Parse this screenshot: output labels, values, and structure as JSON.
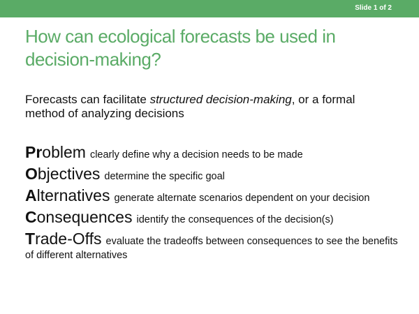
{
  "header": {
    "slide_counter": "Slide 1 of 2"
  },
  "title": "How can ecological forecasts be used in decision-making?",
  "intro": {
    "before": "Forecasts can facilitate ",
    "emphasis": "structured decision-making",
    "after": ", or a formal method of analyzing decisions"
  },
  "steps": [
    {
      "initial": "Pr",
      "rest": "oblem",
      "desc": "clearly define why a decision needs to be made"
    },
    {
      "initial": "O",
      "rest": "bjectives",
      "desc": "determine the specific goal"
    },
    {
      "initial": "A",
      "rest": "lternatives",
      "desc": "generate alternate scenarios dependent on your decision"
    },
    {
      "initial": "C",
      "rest": "onsequences",
      "desc": "identify the consequences of the decision(s)"
    },
    {
      "initial": "T",
      "rest": "rade-Offs",
      "desc": "evaluate the tradeoffs between consequences to see the benefits of different alternatives"
    }
  ],
  "colors": {
    "accent": "#5aab66",
    "text": "#111111"
  }
}
